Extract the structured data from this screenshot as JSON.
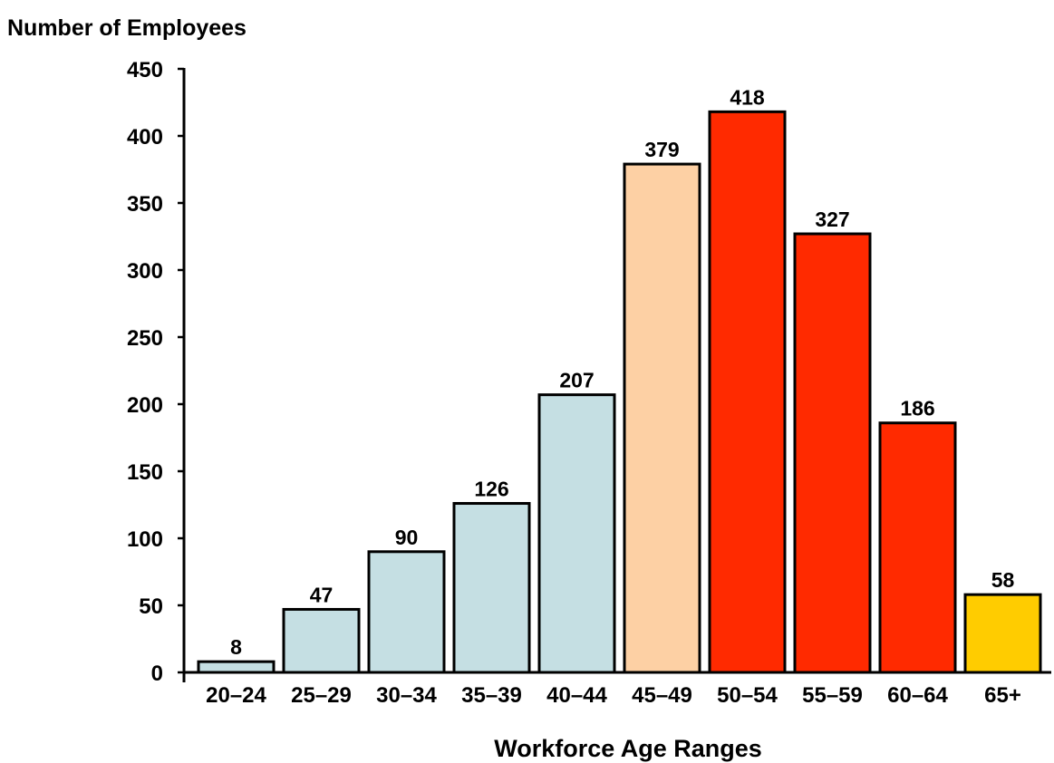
{
  "chart_data": {
    "type": "bar",
    "ylabel": "Number of Employees",
    "xlabel": "Workforce Age Ranges",
    "categories": [
      "20–24",
      "25–29",
      "30–34",
      "35–39",
      "40–44",
      "45–49",
      "50–54",
      "55–59",
      "60–64",
      "65+"
    ],
    "values": [
      8,
      47,
      90,
      126,
      207,
      379,
      418,
      327,
      186,
      58
    ],
    "data_labels": [
      "8",
      "47",
      "90",
      "126",
      "207",
      "379",
      "418",
      "327",
      "186",
      "58"
    ],
    "bar_colors": [
      "#c5dfe3",
      "#c5dfe3",
      "#c5dfe3",
      "#c5dfe3",
      "#c5dfe3",
      "#fdd0a4",
      "#ff2a00",
      "#ff2a00",
      "#ff2a00",
      "#ffcc00"
    ],
    "ylim": [
      0,
      450
    ],
    "yticks": [
      0,
      50,
      100,
      150,
      200,
      250,
      300,
      350,
      400,
      450
    ],
    "ytick_labels": [
      "0",
      "50",
      "100",
      "150",
      "200",
      "250",
      "300",
      "350",
      "400",
      "450"
    ],
    "grid": false,
    "legend": "none"
  }
}
